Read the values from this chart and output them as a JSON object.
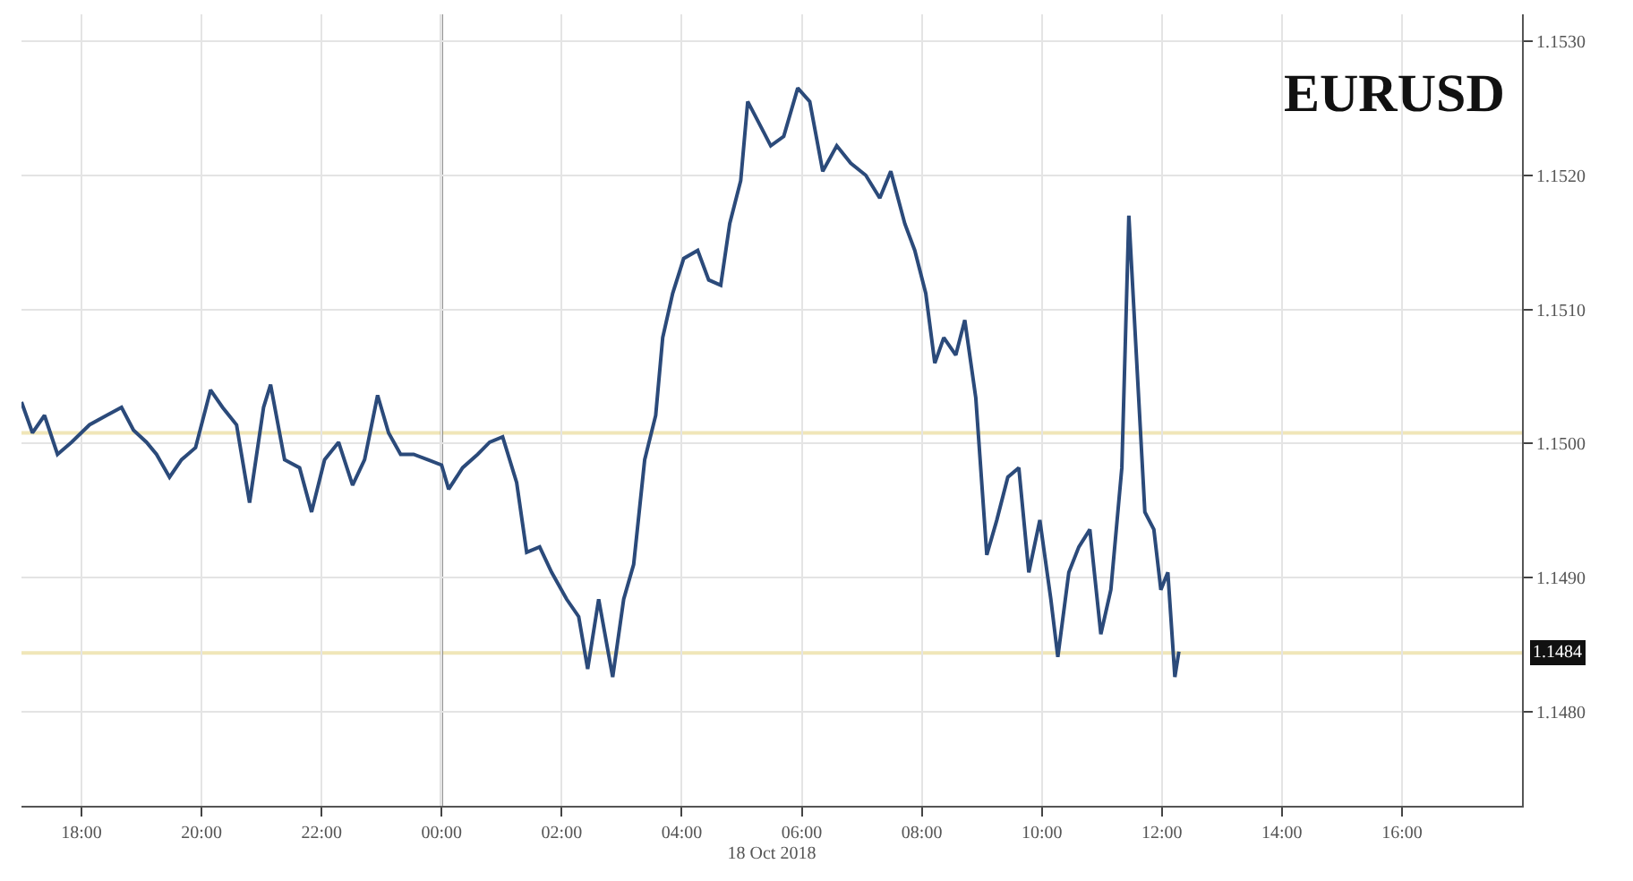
{
  "chart_data": {
    "type": "line",
    "title": "EURUSD",
    "xlabel": "18 Oct 2018",
    "x": [
      "2018-10-17T17:00",
      "2018-10-17T17:11",
      "2018-10-17T17:23",
      "2018-10-17T17:36",
      "2018-10-17T17:50",
      "2018-10-17T18:08",
      "2018-10-17T18:25",
      "2018-10-17T18:40",
      "2018-10-17T18:52",
      "2018-10-17T19:05",
      "2018-10-17T19:15",
      "2018-10-17T19:28",
      "2018-10-17T19:40",
      "2018-10-17T19:54",
      "2018-10-17T20:09",
      "2018-10-17T20:21",
      "2018-10-17T20:35",
      "2018-10-17T20:48",
      "2018-10-17T21:02",
      "2018-10-17T21:09",
      "2018-10-17T21:23",
      "2018-10-17T21:38",
      "2018-10-17T21:50",
      "2018-10-17T22:03",
      "2018-10-17T22:17",
      "2018-10-17T22:31",
      "2018-10-17T22:43",
      "2018-10-17T22:56",
      "2018-10-17T23:07",
      "2018-10-17T23:19",
      "2018-10-17T23:32",
      "2018-10-17T23:46",
      "2018-10-18T00:00",
      "2018-10-18T00:07",
      "2018-10-18T00:21",
      "2018-10-18T00:36",
      "2018-10-18T00:48",
      "2018-10-18T01:01",
      "2018-10-18T01:15",
      "2018-10-18T01:25",
      "2018-10-18T01:38",
      "2018-10-18T01:50",
      "2018-10-18T02:05",
      "2018-10-18T02:17",
      "2018-10-18T02:26",
      "2018-10-18T02:37",
      "2018-10-18T02:51",
      "2018-10-18T03:02",
      "2018-10-18T03:12",
      "2018-10-18T03:23",
      "2018-10-18T03:34",
      "2018-10-18T03:41",
      "2018-10-18T03:51",
      "2018-10-18T04:02",
      "2018-10-18T04:16",
      "2018-10-18T04:27",
      "2018-10-18T04:39",
      "2018-10-18T04:48",
      "2018-10-18T04:59",
      "2018-10-18T05:06",
      "2018-10-18T05:20",
      "2018-10-18T05:29",
      "2018-10-18T05:42",
      "2018-10-18T05:56",
      "2018-10-18T06:08",
      "2018-10-18T06:21",
      "2018-10-18T06:35",
      "2018-10-18T06:49",
      "2018-10-18T07:04",
      "2018-10-18T07:18",
      "2018-10-18T07:29",
      "2018-10-18T07:43",
      "2018-10-18T07:53",
      "2018-10-18T08:04",
      "2018-10-18T08:13",
      "2018-10-18T08:22",
      "2018-10-18T08:34",
      "2018-10-18T08:43",
      "2018-10-18T08:54",
      "2018-10-18T09:05",
      "2018-10-18T09:15",
      "2018-10-18T09:26",
      "2018-10-18T09:37",
      "2018-10-18T09:47",
      "2018-10-18T09:58",
      "2018-10-18T10:09",
      "2018-10-18T10:16",
      "2018-10-18T10:27",
      "2018-10-18T10:37",
      "2018-10-18T10:48",
      "2018-10-18T10:59",
      "2018-10-18T11:09",
      "2018-10-18T11:20",
      "2018-10-18T11:27",
      "2018-10-18T11:34",
      "2018-10-18T11:43",
      "2018-10-18T11:52",
      "2018-10-18T11:59",
      "2018-10-18T12:06",
      "2018-10-18T12:13",
      "2018-10-18T12:17"
    ],
    "series": [
      {
        "color": "#2b4a7a",
        "values": [
          1.15031,
          1.15008,
          1.15021,
          1.14992,
          1.15001,
          1.15014,
          1.15021,
          1.15027,
          1.1501,
          1.15001,
          1.14992,
          1.14975,
          1.14988,
          1.14997,
          1.1504,
          1.15027,
          1.15014,
          1.14956,
          1.15027,
          1.15044,
          1.14988,
          1.14982,
          1.14949,
          1.14988,
          1.15001,
          1.14969,
          1.14988,
          1.15036,
          1.15008,
          1.14992,
          1.14992,
          1.14988,
          1.14984,
          1.14966,
          1.14982,
          1.14992,
          1.15001,
          1.15005,
          1.14971,
          1.14919,
          1.14923,
          1.14904,
          1.14884,
          1.14871,
          1.14832,
          1.14884,
          1.14826,
          1.14884,
          1.1491,
          1.14988,
          1.15021,
          1.15079,
          1.15112,
          1.15138,
          1.15144,
          1.15122,
          1.15118,
          1.15164,
          1.15196,
          1.15255,
          1.15235,
          1.15222,
          1.15229,
          1.15265,
          1.15255,
          1.15203,
          1.15222,
          1.15209,
          1.152,
          1.15183,
          1.15203,
          1.15164,
          1.15144,
          1.15112,
          1.1506,
          1.15079,
          1.15066,
          1.15092,
          1.15034,
          1.14917,
          1.14943,
          1.14975,
          1.14982,
          1.14904,
          1.14943,
          1.14884,
          1.14841,
          1.14904,
          1.14923,
          1.14936,
          1.14858,
          1.14891,
          1.14982,
          1.1517,
          1.15073,
          1.14949,
          1.14936,
          1.14891,
          1.14904,
          1.14826,
          1.14845
        ]
      }
    ],
    "xlim": [
      "2018-10-17T17:00",
      "2018-10-18T18:00"
    ],
    "xticks": [
      {
        "value": "2018-10-17T18:00",
        "label": "18:00"
      },
      {
        "value": "2018-10-17T20:00",
        "label": "20:00"
      },
      {
        "value": "2018-10-17T22:00",
        "label": "22:00"
      },
      {
        "value": "2018-10-18T00:00",
        "label": "00:00"
      },
      {
        "value": "2018-10-18T02:00",
        "label": "02:00"
      },
      {
        "value": "2018-10-18T04:00",
        "label": "04:00"
      },
      {
        "value": "2018-10-18T06:00",
        "label": "06:00"
      },
      {
        "value": "2018-10-18T08:00",
        "label": "08:00"
      },
      {
        "value": "2018-10-18T10:00",
        "label": "10:00"
      },
      {
        "value": "2018-10-18T12:00",
        "label": "12:00"
      },
      {
        "value": "2018-10-18T14:00",
        "label": "14:00"
      },
      {
        "value": "2018-10-18T16:00",
        "label": "16:00"
      }
    ],
    "ylim": [
      1.1473,
      1.1532
    ],
    "yticks": [
      {
        "value": 1.148,
        "label": "1.1480"
      },
      {
        "value": 1.149,
        "label": "1.1490"
      },
      {
        "value": 1.15,
        "label": "1.1500"
      },
      {
        "value": 1.151,
        "label": "1.1510"
      },
      {
        "value": 1.152,
        "label": "1.1520"
      },
      {
        "value": 1.153,
        "label": "1.1530"
      }
    ],
    "ref_lines": [
      {
        "axis": "y",
        "value": 1.15008,
        "color": "#f0e6b8"
      },
      {
        "axis": "y",
        "value": 1.14844,
        "label": "1.1484",
        "color": "#f0e6b8"
      },
      {
        "axis": "x",
        "value": "2018-10-18T00:00",
        "color": "#777777"
      }
    ],
    "grid": true,
    "line_style": "solid"
  }
}
